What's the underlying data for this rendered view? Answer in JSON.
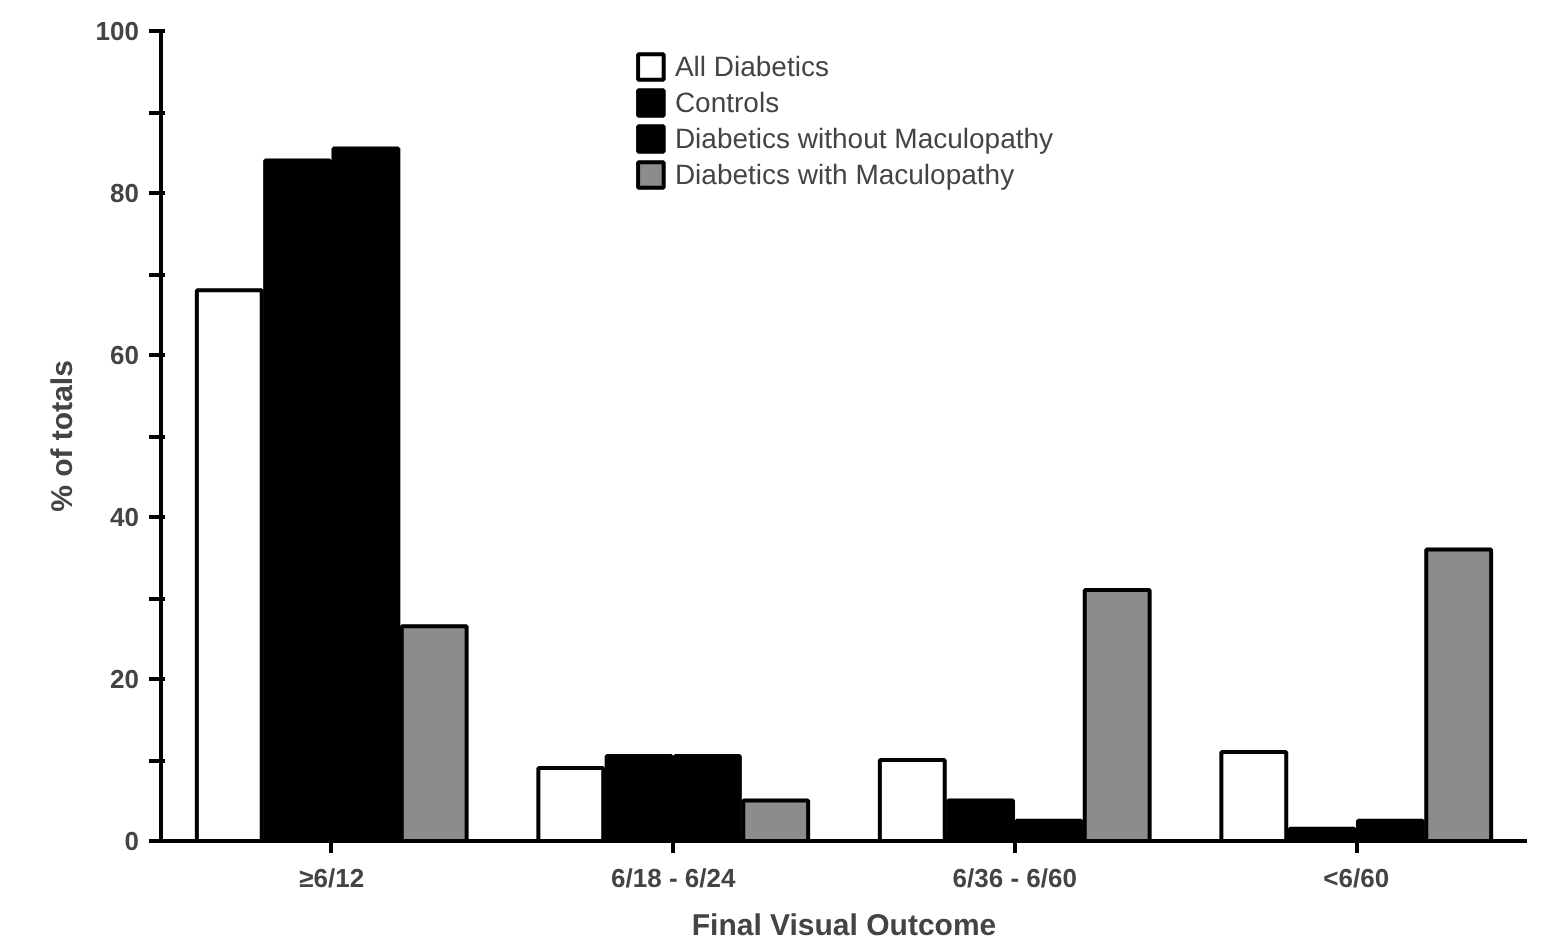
{
  "chart_data": {
    "type": "bar",
    "xlabel": "Final Visual Outcome",
    "ylabel": "% of totals",
    "categories": [
      "≥6/12",
      "6/18 - 6/24",
      "6/36 - 6/60",
      "<6/60"
    ],
    "series": [
      {
        "name": "All Diabetics",
        "color": "#ffffff",
        "values": [
          68,
          9,
          10,
          11
        ]
      },
      {
        "name": "Controls",
        "color": "#000000",
        "values": [
          84,
          10.5,
          5,
          1.5
        ]
      },
      {
        "name": "Diabetics without Maculopathy",
        "color": "#000000",
        "values": [
          85.5,
          10.5,
          2.5,
          2.5
        ]
      },
      {
        "name": "Diabetics with Maculopathy",
        "color": "#8c8c8c",
        "values": [
          26.5,
          5,
          31,
          36
        ]
      }
    ],
    "ylim": [
      0,
      100
    ],
    "yticks": [
      0,
      {
        "value": 10,
        "label": null
      },
      20,
      {
        "value": 30,
        "label": null
      },
      40,
      {
        "value": 50,
        "label": null
      },
      60,
      {
        "value": 70,
        "label": null
      },
      80,
      {
        "value": 90,
        "label": null
      },
      100
    ],
    "grid": false,
    "legend": "top"
  }
}
